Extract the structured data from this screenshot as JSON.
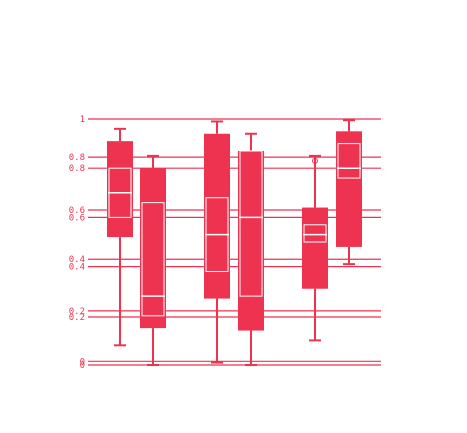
{
  "colors": {
    "accent": "#ee3350",
    "background": "#ffffff"
  },
  "chart_data": {
    "type": "box",
    "title": "",
    "xlabel": "",
    "ylabel": "",
    "ylim": [
      0,
      1
    ],
    "grid": true,
    "y_ticks": [
      {
        "value": 1.0,
        "label": "1"
      },
      {
        "value": 0.845,
        "label": "0.8"
      },
      {
        "value": 0.8,
        "label": "0.8"
      },
      {
        "value": 0.63,
        "label": "0.6"
      },
      {
        "value": 0.6,
        "label": "0.6"
      },
      {
        "value": 0.43,
        "label": "0.4"
      },
      {
        "value": 0.4,
        "label": "0.4"
      },
      {
        "value": 0.22,
        "label": "0.2"
      },
      {
        "value": 0.195,
        "label": "0.2"
      },
      {
        "value": 0.015,
        "label": "0"
      },
      {
        "value": 0.0,
        "label": "0"
      }
    ],
    "boxes": [
      {
        "whisker_low": 0.08,
        "q1": 0.52,
        "median": 0.7,
        "q3": 0.91,
        "whisker_high": 0.96,
        "notch": [
          0.6,
          0.8
        ]
      },
      {
        "whisker_low": 0.0,
        "q1": 0.15,
        "median": 0.28,
        "q3": 0.8,
        "whisker_high": 0.85,
        "notch": [
          0.2,
          0.66
        ]
      },
      {
        "whisker_low": 0.01,
        "q1": 0.27,
        "median": 0.53,
        "q3": 0.94,
        "whisker_high": 0.99,
        "notch": [
          0.38,
          0.68
        ]
      },
      {
        "whisker_low": 0.0,
        "q1": 0.14,
        "median": 0.6,
        "q3": 0.87,
        "whisker_high": 0.94,
        "notch": [
          0.28,
          0.87
        ]
      },
      {
        "whisker_low": 0.1,
        "q1": 0.31,
        "median": 0.53,
        "q3": 0.64,
        "whisker_high": 0.85,
        "notch": [
          0.5,
          0.57
        ],
        "outliers": [
          0.83
        ]
      },
      {
        "whisker_low": 0.41,
        "q1": 0.48,
        "median": 0.8,
        "q3": 0.95,
        "whisker_high": 0.995,
        "notch": [
          0.76,
          0.9
        ]
      }
    ]
  }
}
